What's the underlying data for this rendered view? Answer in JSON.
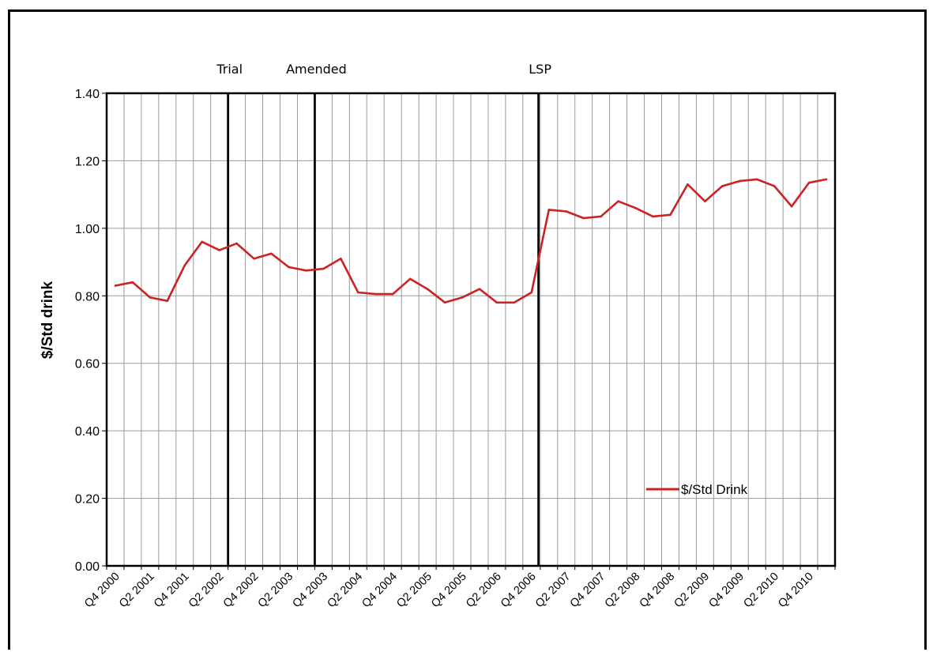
{
  "chart_data": {
    "type": "line",
    "ylabel": "$/Std drink",
    "xlabel": "",
    "ylim": [
      0,
      1.4
    ],
    "yticks": [
      "0.00",
      "0.20",
      "0.40",
      "0.60",
      "0.80",
      "1.00",
      "1.20",
      "1.40"
    ],
    "grid": true,
    "legend_position": "bottom-right",
    "x_labels": [
      "Q4 2000",
      "Q2 2001",
      "Q4 2001",
      "Q2 2002",
      "Q4 2002",
      "Q2 2003",
      "Q4 2003",
      "Q2 2004",
      "Q4 2004",
      "Q2 2005",
      "Q4 2005",
      "Q2 2006",
      "Q4 2006",
      "Q2 2007",
      "Q4 2007",
      "Q2 2008",
      "Q4 2008",
      "Q2 2009",
      "Q4 2009",
      "Q2 2010",
      "Q4 2010"
    ],
    "series": [
      {
        "name": "$/Std Drink",
        "color": "#cc2222",
        "values": [
          0.83,
          0.84,
          0.795,
          0.785,
          0.89,
          0.96,
          0.935,
          0.955,
          0.91,
          0.925,
          0.885,
          0.875,
          0.88,
          0.91,
          0.81,
          0.805,
          0.805,
          0.85,
          0.82,
          0.78,
          0.795,
          0.82,
          0.78,
          0.78,
          0.81,
          1.055,
          1.05,
          1.03,
          1.035,
          1.08,
          1.06,
          1.035,
          1.04,
          1.13,
          1.08,
          1.125,
          1.14,
          1.145,
          1.125,
          1.065,
          1.135,
          1.145
        ]
      }
    ],
    "events": [
      {
        "label": "Trial",
        "position": 7.0
      },
      {
        "label": "Amended",
        "position": 12.0
      },
      {
        "label": "LSP",
        "position": 24.9
      }
    ],
    "event_line_color": "#000000"
  }
}
